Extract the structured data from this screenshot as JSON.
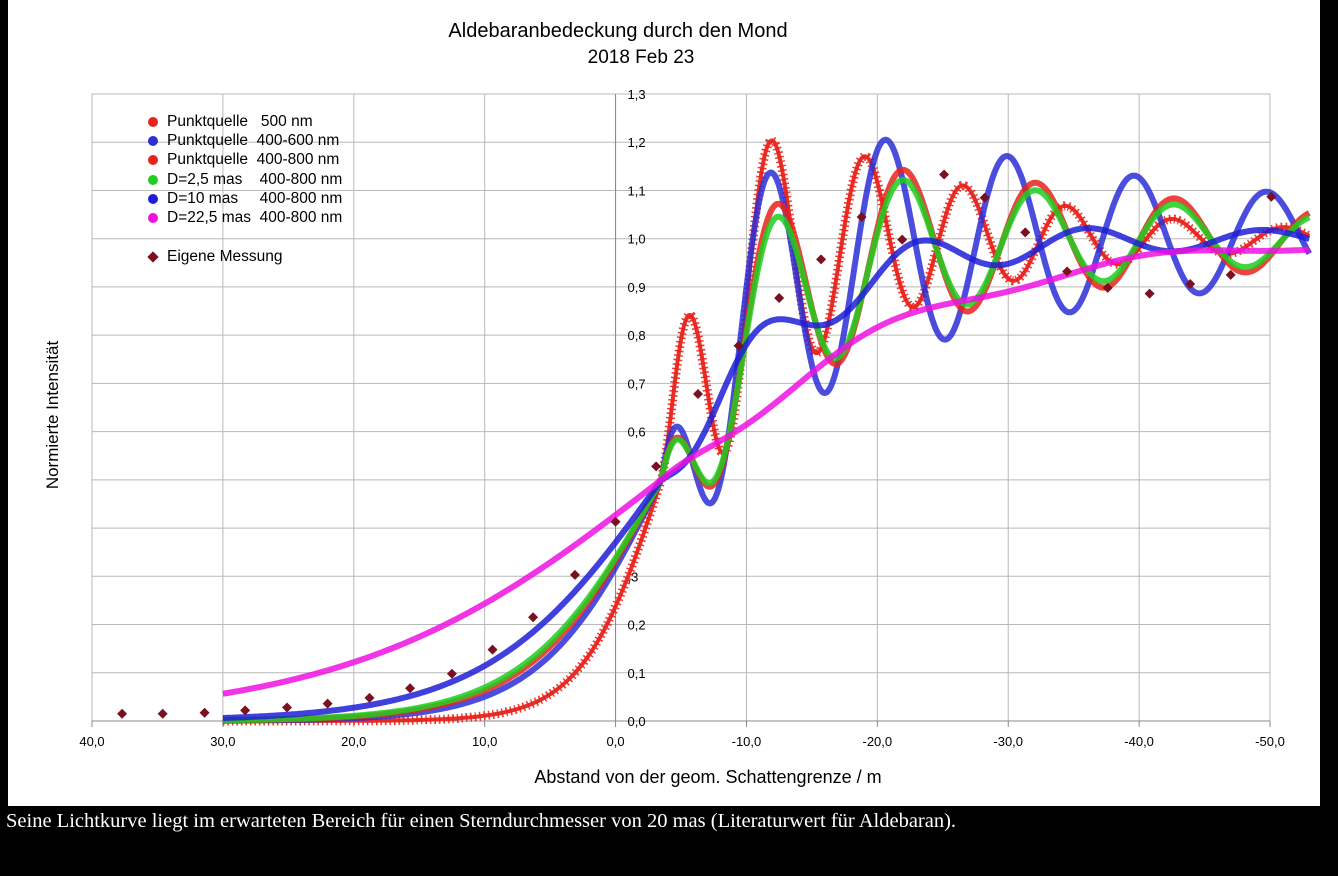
{
  "caption": "Seine Lichtkurve liegt im erwarteten Bereich für einen Sterndurchmesser von 20 mas (Literaturwert für Aldebaran).",
  "chart_data": {
    "type": "scatter",
    "title": "Aldebaranbedeckung durch den Mond",
    "subtitle": "2018 Feb 23",
    "xlabel": "Abstand von der geom. Schattengrenze / m",
    "ylabel": "Normierte Intensität",
    "xlim": [
      40,
      -50
    ],
    "ylim": [
      0,
      1.3
    ],
    "x_reversed": true,
    "x_ticks": [
      "40,0",
      "30,0",
      "20,0",
      "10,0",
      "0,0",
      "-10,0",
      "-20,0",
      "-30,0",
      "-40,0",
      "-50,0"
    ],
    "y_ticks": [
      "0,0",
      "0,1",
      "0,2",
      ",3",
      "",
      "",
      "0,6",
      "0,7",
      "0,8",
      "0,9",
      "1,0",
      "1,1",
      "1,2",
      "1,3"
    ],
    "grid": true,
    "legend_position": "top-left",
    "series": [
      {
        "name": "Punktquelle   500 nm",
        "color": "#e8231c",
        "model": "fresnel",
        "amplitude": 0.47,
        "period": 6.9,
        "phase_offset": 3.6,
        "decay": 4.0,
        "smooth": 0.6,
        "dash_marker": true
      },
      {
        "name": "Punktquelle  400-600 nm",
        "color": "#2b2fd6",
        "model": "fresnel",
        "amplitude": 0.38,
        "period": 8.6,
        "phase_offset": 3.4,
        "decay": 8.5,
        "smooth": 2.2
      },
      {
        "name": "Punktquelle  400-800 nm",
        "color": "#e8231c",
        "model": "fresnel",
        "amplitude": 0.31,
        "period": 9.4,
        "phase_offset": 3.9,
        "decay": 7.5,
        "smooth": 2.6
      },
      {
        "name": "D=2,5 mas    400-800 nm",
        "color": "#1fce1f",
        "model": "fresnel",
        "amplitude": 0.29,
        "period": 9.4,
        "phase_offset": 3.9,
        "decay": 7.0,
        "smooth": 2.8
      },
      {
        "name": "D=10 mas     400-800 nm",
        "color": "#1e1ed6",
        "model": "fresnel",
        "amplitude": 0.08,
        "period": 12,
        "phase_offset": 2.5,
        "decay": 8.0,
        "smooth": 4.2
      },
      {
        "name": "D=22,5 mas  400-800 nm",
        "color": "#ee10e0",
        "model": "fresnel",
        "amplitude": 0.025,
        "period": 20,
        "phase_offset": -8.0,
        "decay": 10.0,
        "smooth": 9.5
      }
    ],
    "measurement": {
      "name": "Eigene Messung",
      "color": "#7a1020",
      "x": [
        37.7,
        34.6,
        31.4,
        28.3,
        25.1,
        22.0,
        18.8,
        15.7,
        12.5,
        9.4,
        6.3,
        3.1,
        0.0,
        -3.1,
        -6.3,
        -9.4,
        -12.5,
        -15.7,
        -18.8,
        -21.9,
        -25.1,
        -28.2,
        -31.3,
        -34.5,
        -37.6,
        -40.8,
        -43.9,
        -47.0,
        -50.1
      ],
      "y": [
        0.015,
        0.015,
        0.017,
        0.022,
        0.028,
        0.036,
        0.048,
        0.068,
        0.098,
        0.148,
        0.215,
        0.303,
        0.413,
        0.528,
        0.678,
        0.778,
        0.877,
        0.957,
        1.045,
        0.998,
        1.133,
        1.085,
        1.013,
        0.932,
        0.898,
        0.886,
        0.906,
        0.925,
        1.087
      ]
    }
  }
}
